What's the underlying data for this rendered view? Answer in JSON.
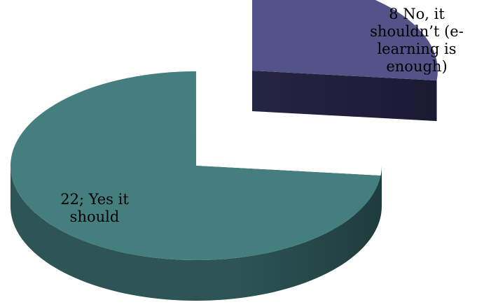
{
  "chart_data": {
    "type": "pie",
    "style": "3d-exploded",
    "slices": [
      {
        "value": 22,
        "label_text": "22; Yes it should",
        "lines": [
          "22; Yes it",
          "should"
        ],
        "color_top": "#457E7F",
        "color_side": "#2D5556",
        "color_side_dark": "#1F3C3D"
      },
      {
        "value": 8,
        "label_text": "8 No, it shouldn't (e-learning is enough)",
        "lines": [
          "8 No, it",
          "shouldn’t (e-",
          "learning is",
          "enough)"
        ],
        "color_top": "#535389",
        "color_side": "#252544",
        "color_side_dark": "#1A1A33"
      }
    ],
    "legend": "none"
  }
}
